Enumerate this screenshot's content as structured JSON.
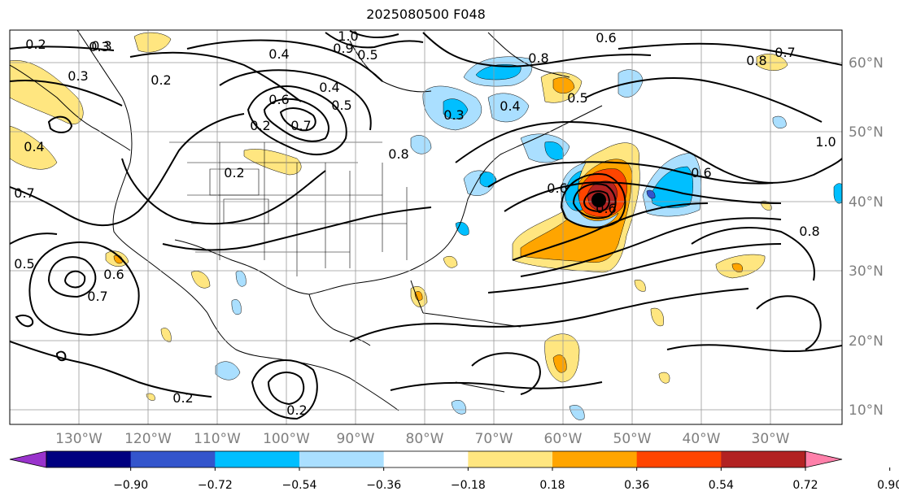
{
  "title": "2025080500 F048",
  "lat_labels": [
    "60°N",
    "50°N",
    "40°N",
    "30°N",
    "20°N",
    "10°N"
  ],
  "lon_labels": [
    "130°W",
    "120°W",
    "110°W",
    "100°W",
    "90°W",
    "80°W",
    "70°W",
    "60°W",
    "50°W",
    "40°W",
    "30°W"
  ],
  "colorbar": {
    "colors": [
      "#9933cc",
      "#000080",
      "#3355cc",
      "#00bfff",
      "#aadfff",
      "#ffffff",
      "#ffe680",
      "#ffa500",
      "#ff4500",
      "#b22222",
      "#ff80aa"
    ],
    "tick_labels": [
      "−0.90",
      "−0.72",
      "−0.54",
      "−0.36",
      "−0.18",
      "0.18",
      "0.36",
      "0.54",
      "0.72",
      "0.90"
    ]
  },
  "contour_labels": [
    "0.2",
    "0.3",
    "0.3",
    "0.2",
    "0.4",
    "1.0",
    "0.9",
    "0.5",
    "0.6",
    "0.4",
    "0.5",
    "0.8",
    "0.5",
    "0.6",
    "0.7",
    "0.2",
    "0.4",
    "0.7",
    "0.6",
    "0.5",
    "0.7",
    "0.6",
    "0.3",
    "0.4",
    "0.6",
    "0.6",
    "0.8",
    "0.7",
    "1.0",
    "0.8",
    "0.2",
    "0.2",
    "0.2",
    "0.3",
    "0.8"
  ],
  "marker": {
    "name": "low-center",
    "color": "#000000"
  }
}
